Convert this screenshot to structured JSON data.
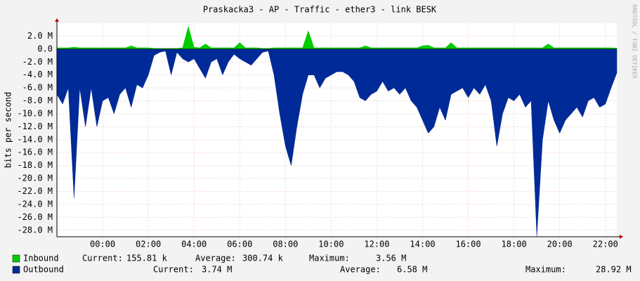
{
  "chart_data": {
    "type": "area",
    "title": "Praskacka3 - AP - Traffic - ether3 - link BESK",
    "y_label": "bits per second",
    "watermark": "RRDTOOL / TOBI OETIKER",
    "xlim": [
      -2,
      22.5
    ],
    "xticks": [
      {
        "value": 0,
        "label": "00:00"
      },
      {
        "value": 2,
        "label": "02:00"
      },
      {
        "value": 4,
        "label": "04:00"
      },
      {
        "value": 6,
        "label": "06:00"
      },
      {
        "value": 8,
        "label": "08:00"
      },
      {
        "value": 10,
        "label": "10:00"
      },
      {
        "value": 12,
        "label": "12:00"
      },
      {
        "value": 14,
        "label": "14:00"
      },
      {
        "value": 16,
        "label": "16:00"
      },
      {
        "value": 18,
        "label": "18:00"
      },
      {
        "value": 20,
        "label": "20:00"
      },
      {
        "value": 22,
        "label": "22:00"
      }
    ],
    "ylim": [
      -29,
      4
    ],
    "yticks": [
      {
        "value": 2,
        "label": "2.0 M"
      },
      {
        "value": 0,
        "label": "0.0"
      },
      {
        "value": -2,
        "label": "-2.0 M"
      },
      {
        "value": -4,
        "label": "-4.0 M"
      },
      {
        "value": -6,
        "label": "-6.0 M"
      },
      {
        "value": -8,
        "label": "-8.0 M"
      },
      {
        "value": -10,
        "label": "-10.0 M"
      },
      {
        "value": -12,
        "label": "-12.0 M"
      },
      {
        "value": -14,
        "label": "-14.0 M"
      },
      {
        "value": -16,
        "label": "-16.0 M"
      },
      {
        "value": -18,
        "label": "-18.0 M"
      },
      {
        "value": -20,
        "label": "-20.0 M"
      },
      {
        "value": -22,
        "label": "-22.0 M"
      },
      {
        "value": -24,
        "label": "-24.0 M"
      },
      {
        "value": -26,
        "label": "-26.0 M"
      },
      {
        "value": -28,
        "label": "-28.0 M"
      }
    ],
    "grid": true,
    "stat_labels": [
      "Current:",
      "Average:",
      "Maximum:"
    ],
    "x": [
      -2,
      -1.75,
      -1.5,
      -1.25,
      -1,
      -0.75,
      -0.5,
      -0.25,
      0,
      0.25,
      0.5,
      0.75,
      1,
      1.25,
      1.5,
      1.75,
      2,
      2.25,
      2.5,
      2.75,
      3,
      3.25,
      3.5,
      3.75,
      4,
      4.25,
      4.5,
      4.75,
      5,
      5.25,
      5.5,
      5.75,
      6,
      6.25,
      6.5,
      6.75,
      7,
      7.25,
      7.5,
      7.75,
      8,
      8.25,
      8.5,
      8.75,
      9,
      9.25,
      9.5,
      9.75,
      10,
      10.25,
      10.5,
      10.75,
      11,
      11.25,
      11.5,
      11.75,
      12,
      12.25,
      12.5,
      12.75,
      13,
      13.25,
      13.5,
      13.75,
      14,
      14.25,
      14.5,
      14.75,
      15,
      15.25,
      15.5,
      15.75,
      16,
      16.25,
      16.5,
      16.75,
      17,
      17.25,
      17.5,
      17.75,
      18,
      18.25,
      18.5,
      18.75,
      19,
      19.25,
      19.5,
      19.75,
      20,
      20.25,
      20.5,
      20.75,
      21,
      21.25,
      21.5,
      21.75,
      22,
      22.25,
      22.5
    ],
    "series": [
      {
        "name": "Inbound",
        "color": "#00cc00",
        "stats": [
          "155.81 k",
          "300.74 k",
          "3.56 M"
        ],
        "values": [
          0.2,
          0.2,
          0.2,
          0.3,
          0.2,
          0.2,
          0.2,
          0.2,
          0.2,
          0.2,
          0.2,
          0.2,
          0.2,
          0.5,
          0.2,
          0.2,
          0.2,
          0.1,
          0.1,
          0.1,
          0.1,
          0.1,
          0.2,
          3.5,
          0.3,
          0.2,
          0.8,
          0.2,
          0.2,
          0.2,
          0.2,
          0.2,
          1.0,
          0.2,
          0.2,
          0.2,
          0.1,
          0.1,
          0.2,
          0.2,
          0.2,
          0.2,
          0.2,
          0.2,
          2.8,
          0.2,
          0.2,
          0.2,
          0.2,
          0.2,
          0.2,
          0.2,
          0.2,
          0.2,
          0.5,
          0.2,
          0.2,
          0.2,
          0.2,
          0.2,
          0.2,
          0.2,
          0.2,
          0.2,
          0.5,
          0.6,
          0.2,
          0.2,
          0.2,
          1.0,
          0.2,
          0.2,
          0.2,
          0.2,
          0.2,
          0.2,
          0.2,
          0.2,
          0.2,
          0.2,
          0.2,
          0.2,
          0.2,
          0.2,
          0.2,
          0.2,
          0.8,
          0.2,
          0.2,
          0.2,
          0.2,
          0.2,
          0.2,
          0.2,
          0.2,
          0.2,
          0.2,
          0.2,
          0.16
        ]
      },
      {
        "name": "Outbound",
        "color": "#002a97",
        "stats": [
          "3.74 M",
          "6.58 M",
          "28.92 M"
        ],
        "values": [
          -7,
          -8.5,
          -6,
          -23,
          -6,
          -12,
          -6,
          -12,
          -8,
          -7.5,
          -10,
          -7,
          -6,
          -9,
          -5.5,
          -6,
          -4,
          -1,
          -0.5,
          -0.3,
          -4,
          -0.5,
          -1.5,
          -2,
          -1.5,
          -3,
          -4.5,
          -2,
          -1.5,
          -4,
          -2,
          -0.8,
          -1.5,
          -2,
          -2.5,
          -1.5,
          -0.5,
          -0.3,
          -4,
          -10,
          -15,
          -18,
          -12,
          -7,
          -4,
          -4,
          -6,
          -4.5,
          -4,
          -3.5,
          -3.5,
          -4,
          -5,
          -7.5,
          -8,
          -7,
          -6.5,
          -5,
          -6.5,
          -6,
          -7,
          -6,
          -8,
          -9,
          -11,
          -13,
          -12,
          -9,
          -11,
          -7,
          -6.5,
          -6,
          -7.5,
          -6,
          -7,
          -5.5,
          -8,
          -15,
          -10,
          -7.5,
          -8,
          -7,
          -9,
          -8,
          -28.9,
          -14,
          -8,
          -11,
          -13,
          -11,
          -10,
          -9,
          -10.5,
          -8,
          -7.5,
          -9,
          -8.5,
          -6,
          -3.7
        ]
      }
    ]
  }
}
